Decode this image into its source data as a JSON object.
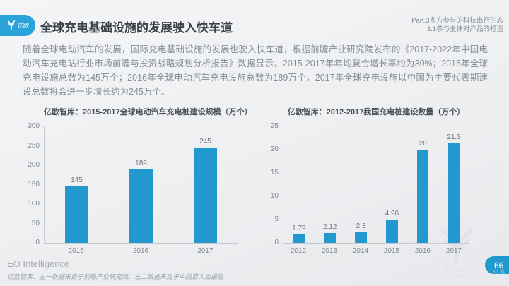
{
  "header": {
    "logo_text": "亿欧",
    "title": "全球充电基础设施的发展驶入快车道",
    "section_line1": "Part.3多方参与的科技出行生态",
    "section_line2": "3.1参与主体对产品的打造"
  },
  "body_text": "随着全球电动汽车的发展，国际充电基础设施的发展也驶入快车道，根据前瞻产业研究院发布的《2017-2022年中国电动汽车充电站行业市场前瞻与投资战略规划分析报告》数据显示，2015-2017年年均复合增长率约为30%；2015年全球充电设施总数为145万个；2016年全球电动汽车充电设施总数为189万个，2017年全球充电设施以中国为主要代表期建设总数将会进一步增长约为245万个。",
  "chart_data": [
    {
      "type": "bar",
      "title": "亿欧智库：2015-2017全球电动汽车充电桩建设规模（万个）",
      "categories": [
        "2015",
        "2016",
        "2017"
      ],
      "values": [
        145,
        189,
        245
      ],
      "ylim": [
        0,
        300
      ],
      "yticks": [
        0,
        50,
        100,
        150,
        200,
        250,
        300
      ],
      "bar_color": "#2199ce",
      "grid": false,
      "data_labels": true,
      "legend": "none"
    },
    {
      "type": "bar",
      "title": "亿欧智库：2012-2017我国充电桩建设数量（万个）",
      "categories": [
        "2012",
        "2013",
        "2014",
        "2015",
        "2016",
        "2017"
      ],
      "values": [
        1.79,
        2.12,
        2.3,
        4.96,
        20,
        21.3
      ],
      "ylim": [
        0,
        25
      ],
      "yticks": [
        0,
        5,
        10,
        15,
        20,
        25
      ],
      "bar_color": "#2199ce",
      "grid": false,
      "data_labels": true,
      "legend": "none"
    }
  ],
  "footer": {
    "brand": "EO Intelligence",
    "source_note": "亿欧智库：左一数据来自于前瞻产业研究院，左二数据来自于中国百人会报告",
    "page_number": "66",
    "watermark_text": "亿欧"
  },
  "colors": {
    "brand_blue": "#29a3d9",
    "bar_blue": "#2199ce",
    "title_text": "#3c4149",
    "body_text": "#868c96",
    "background": "#edeff1"
  }
}
